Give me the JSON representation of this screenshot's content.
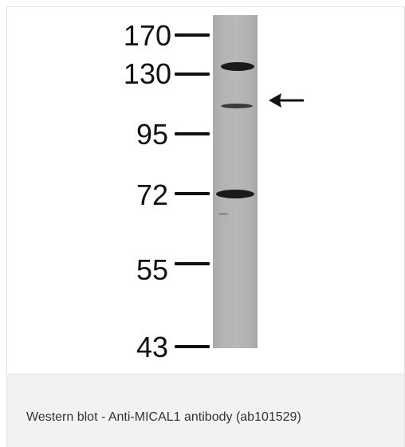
{
  "figure": {
    "markers": [
      {
        "label": "170"
      },
      {
        "label": "130"
      },
      {
        "label": "95"
      },
      {
        "label": "72"
      },
      {
        "label": "55"
      },
      {
        "label": "43"
      }
    ],
    "arrow_icon": "left-arrow-icon",
    "colors": {
      "lane": "#b5b5b5",
      "band": "#1a1a1a",
      "caption_background": "#f2f2f2"
    }
  },
  "caption": {
    "text": "Western blot - Anti-MICAL1 antibody (ab101529)"
  }
}
